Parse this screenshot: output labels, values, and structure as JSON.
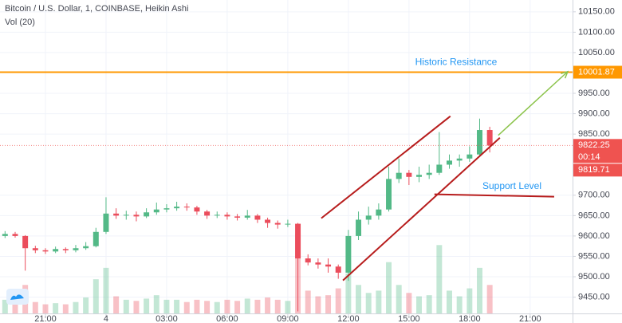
{
  "chart_data": {
    "type": "candlestick",
    "title": "Bitcoin / U.S. Dollar, 1, COINBASE, Heikin Ashi",
    "subtitle": "Vol (20)",
    "up_color": "#53b987",
    "down_color": "#eb4d5c",
    "grid": true,
    "xlim": [
      -2.25,
      26.1
    ],
    "ylim": [
      9410,
      10179
    ],
    "xticks": [
      {
        "value": 0,
        "label": "21:00"
      },
      {
        "value": 3,
        "label": "4"
      },
      {
        "value": 6,
        "label": "03:00"
      },
      {
        "value": 9,
        "label": "06:00"
      },
      {
        "value": 12,
        "label": "09:00"
      },
      {
        "value": 15,
        "label": "12:00"
      },
      {
        "value": 18,
        "label": "15:00"
      },
      {
        "value": 21,
        "label": "18:00"
      },
      {
        "value": 24,
        "label": "21:00"
      }
    ],
    "yticks": [
      {
        "value": 10150,
        "label": "10150.00"
      },
      {
        "value": 10100,
        "label": "10100.00"
      },
      {
        "value": 10050,
        "label": "10050.00"
      },
      {
        "value": 9950,
        "label": "9950.00"
      },
      {
        "value": 9900,
        "label": "9900.00"
      },
      {
        "value": 9850,
        "label": "9850.00"
      },
      {
        "value": 9700,
        "label": "9700.00"
      },
      {
        "value": 9650,
        "label": "9650.00"
      },
      {
        "value": 9600,
        "label": "9600.00"
      },
      {
        "value": 9550,
        "label": "9550.00"
      },
      {
        "value": 9500,
        "label": "9500.00"
      },
      {
        "value": 9450,
        "label": "9450.00"
      }
    ],
    "x": [
      -2,
      -1.5,
      -1,
      -0.5,
      0,
      0.5,
      1,
      1.5,
      2,
      2.5,
      3,
      3.5,
      4,
      4.5,
      5,
      5.5,
      6,
      6.5,
      7,
      7.5,
      8,
      8.5,
      9,
      9.5,
      10,
      10.5,
      11,
      11.5,
      12,
      12.5,
      13,
      13.5,
      14,
      14.5,
      15,
      15.5,
      16,
      16.5,
      17,
      17.5,
      18,
      18.5,
      19,
      19.5,
      20,
      20.5,
      21,
      21.5,
      22
    ],
    "open": [
      9600,
      9605,
      9600,
      9570,
      9565,
      9562,
      9568,
      9565,
      9570,
      9575,
      9610,
      9655,
      9650,
      9652,
      9648,
      9658,
      9665,
      9668,
      9672,
      9670,
      9660,
      9650,
      9652,
      9648,
      9645,
      9650,
      9640,
      9632,
      9628,
      9630,
      9545,
      9535,
      9530,
      9525,
      9510,
      9600,
      9640,
      9650,
      9665,
      9740,
      9755,
      9745,
      9750,
      9755,
      9775,
      9785,
      9790,
      9800,
      9860
    ],
    "high": [
      9612,
      9610,
      9602,
      9576,
      9570,
      9574,
      9572,
      9578,
      9585,
      9620,
      9695,
      9668,
      9662,
      9660,
      9668,
      9682,
      9678,
      9684,
      9680,
      9674,
      9664,
      9660,
      9658,
      9654,
      9664,
      9654,
      9645,
      9638,
      9640,
      9632,
      9555,
      9545,
      9545,
      9530,
      9615,
      9660,
      9672,
      9680,
      9770,
      9790,
      9762,
      9770,
      9775,
      9855,
      9800,
      9800,
      9820,
      9888,
      9868
    ],
    "low": [
      9595,
      9596,
      9515,
      9558,
      9556,
      9558,
      9558,
      9560,
      9566,
      9572,
      9605,
      9642,
      9640,
      9636,
      9644,
      9652,
      9658,
      9662,
      9662,
      9652,
      9642,
      9644,
      9640,
      9638,
      9640,
      9632,
      9620,
      9618,
      9622,
      9415,
      9528,
      9520,
      9510,
      9495,
      9490,
      9590,
      9628,
      9640,
      9660,
      9730,
      9725,
      9732,
      9740,
      9750,
      9765,
      9770,
      9782,
      9795,
      9805
    ],
    "close": [
      9605,
      9600,
      9570,
      9565,
      9562,
      9568,
      9565,
      9570,
      9575,
      9610,
      9655,
      9650,
      9652,
      9648,
      9658,
      9665,
      9668,
      9672,
      9670,
      9660,
      9650,
      9652,
      9648,
      9645,
      9650,
      9640,
      9632,
      9628,
      9630,
      9545,
      9535,
      9530,
      9525,
      9510,
      9600,
      9640,
      9650,
      9665,
      9740,
      9755,
      9745,
      9750,
      9755,
      9775,
      9785,
      9790,
      9800,
      9860,
      9822
    ],
    "volume": [
      12,
      10,
      25,
      10,
      8,
      9,
      8,
      10,
      14,
      30,
      40,
      15,
      12,
      11,
      13,
      16,
      12,
      12,
      10,
      12,
      11,
      10,
      12,
      11,
      13,
      12,
      14,
      12,
      11,
      70,
      20,
      15,
      16,
      22,
      35,
      25,
      18,
      20,
      45,
      25,
      18,
      15,
      16,
      60,
      20,
      15,
      22,
      40,
      25
    ],
    "resistance": {
      "label": "Historic Resistance",
      "value": 10001.87,
      "color": "#ff9800",
      "label_color": "#2196f3"
    },
    "last_price": 9822.25,
    "countdown": "00:14",
    "secondary_price": 9819.71,
    "price_color": "#ef5350",
    "trend_lines": [
      {
        "x": [
          13.66,
          20.05
        ],
        "y": [
          9643.6,
          9893.9
        ],
        "color": "#b71c1c"
      },
      {
        "x": [
          14.73,
          22.5
        ],
        "y": [
          9491,
          9841
        ],
        "color": "#b71c1c"
      }
    ],
    "support": {
      "label": "Support Level",
      "x": [
        19.26,
        25.19
      ],
      "y": [
        9702.3,
        9696.4
      ],
      "color": "#b71c1c",
      "label_color": "#2196f3"
    },
    "arrow": {
      "x": [
        22.42,
        25.86
      ],
      "y": [
        9847,
        10003.4
      ],
      "color": "#8bc34a"
    }
  }
}
